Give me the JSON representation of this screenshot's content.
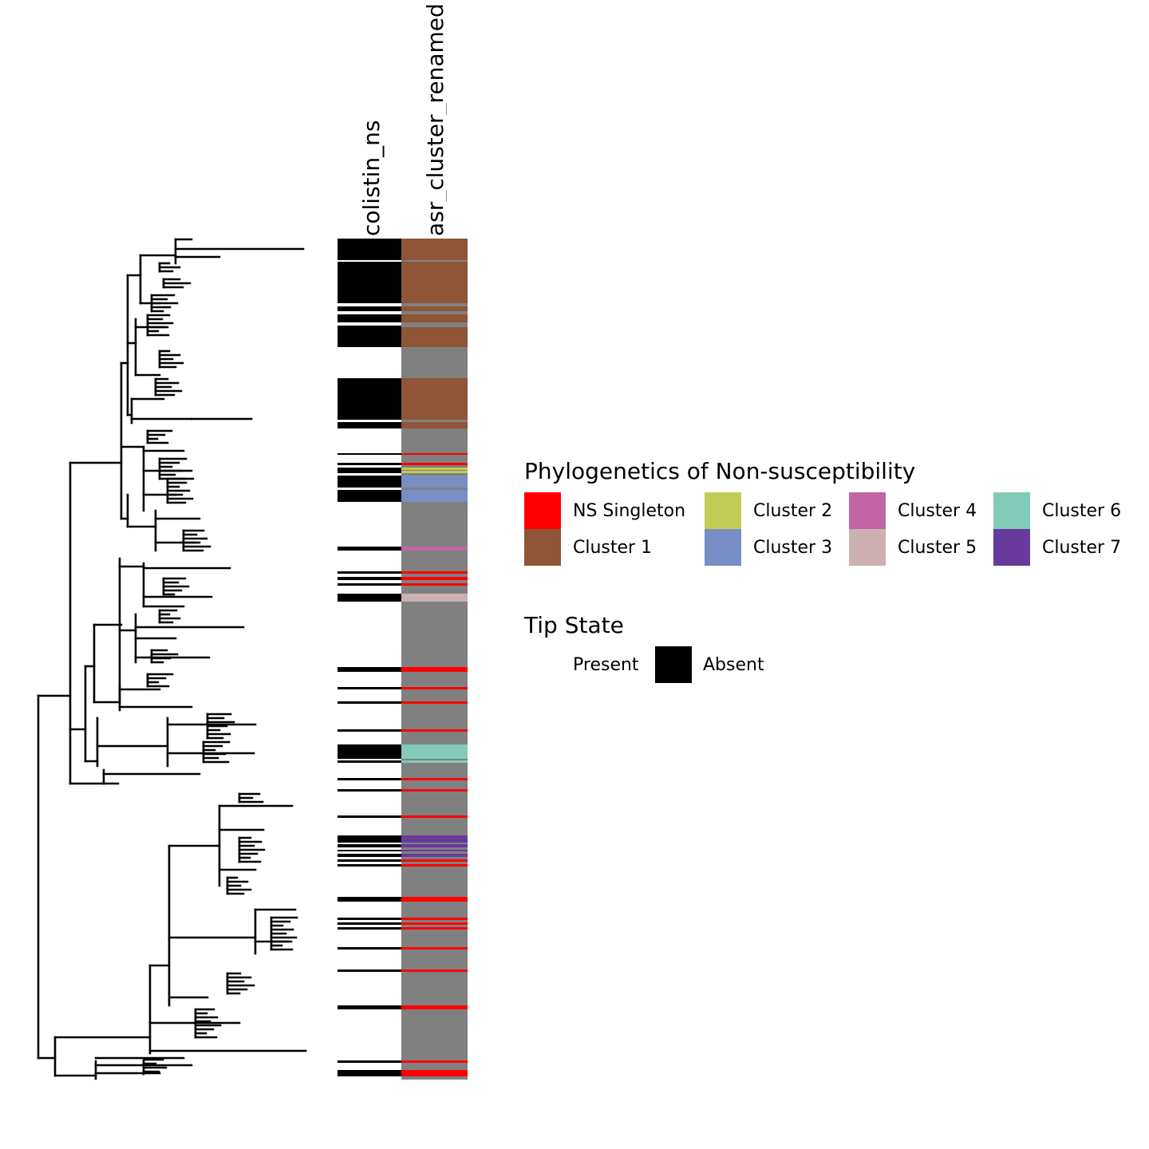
{
  "columns": {
    "colistin": "colistin_ns",
    "cluster": "asr_cluster_renamed"
  },
  "legend_ns": {
    "title": "Phylogenetics of Non-susceptibility",
    "items": [
      {
        "label": "NS Singleton",
        "color": "#ff0000"
      },
      {
        "label": "Cluster 2",
        "color": "#c1cd55"
      },
      {
        "label": "Cluster 4",
        "color": "#c165a5"
      },
      {
        "label": "Cluster 6",
        "color": "#83cbb8"
      },
      {
        "label": "Cluster 1",
        "color": "#8f5536"
      },
      {
        "label": "Cluster 3",
        "color": "#788fc5"
      },
      {
        "label": "Cluster 5",
        "color": "#cdb0b2"
      },
      {
        "label": "Cluster 7",
        "color": "#683a9b"
      }
    ]
  },
  "legend_tip": {
    "title": "Tip State",
    "present": "Present",
    "absent": "Absent",
    "absent_color": "#000000"
  },
  "colors": {
    "background_cluster": "#808080",
    "tree": "#000000"
  }
}
